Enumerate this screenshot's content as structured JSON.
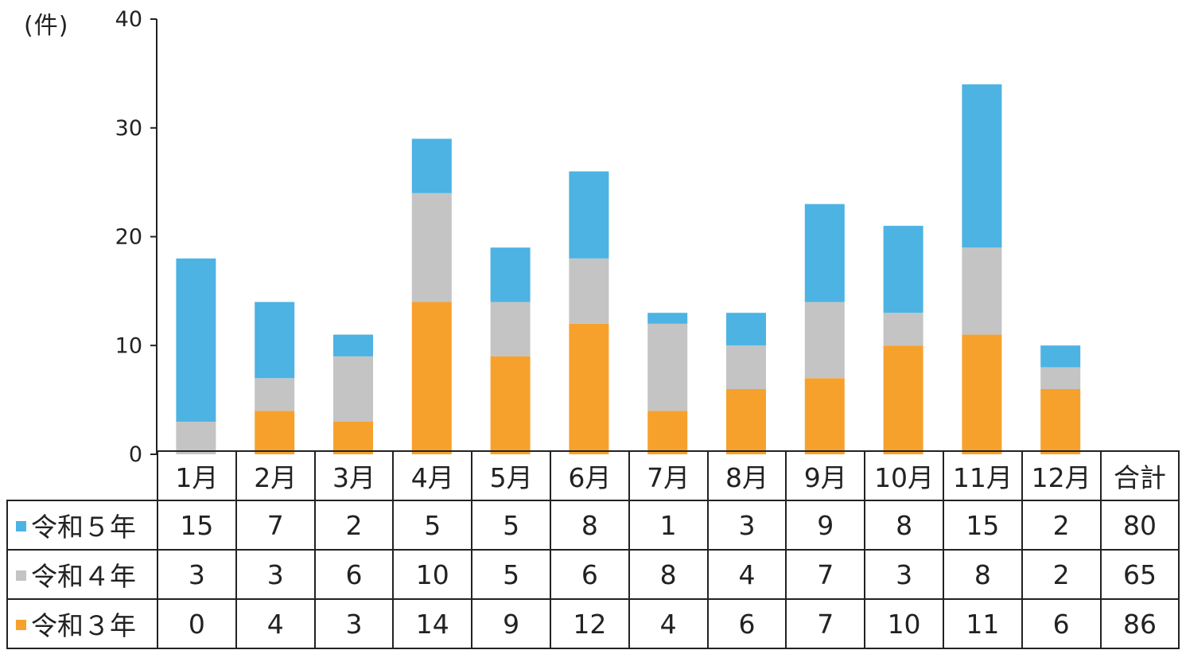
{
  "unit_label": "(件)",
  "total_header": "合計",
  "chart_data": {
    "type": "bar",
    "stacked": true,
    "categories": [
      "1月",
      "2月",
      "3月",
      "4月",
      "5月",
      "6月",
      "7月",
      "8月",
      "9月",
      "10月",
      "11月",
      "12月"
    ],
    "series": [
      {
        "name": "令和３年",
        "color": "#f7a12d",
        "values": [
          0,
          4,
          3,
          14,
          9,
          12,
          4,
          6,
          7,
          10,
          11,
          6
        ],
        "total": "86"
      },
      {
        "name": "令和４年",
        "color": "#c4c4c4",
        "values": [
          3,
          3,
          6,
          10,
          5,
          6,
          8,
          4,
          7,
          3,
          8,
          2
        ],
        "total": "65"
      },
      {
        "name": "令和５年",
        "color": "#4cb3e3",
        "values": [
          15,
          7,
          2,
          5,
          5,
          8,
          1,
          3,
          9,
          8,
          15,
          2
        ],
        "total": "80"
      }
    ],
    "table_row_order": [
      "令和５年",
      "令和４年",
      "令和３年"
    ],
    "ylim": [
      0,
      40
    ],
    "yticks": [
      0,
      10,
      20,
      30,
      40
    ],
    "grid": false,
    "legend": "data table below chart"
  }
}
